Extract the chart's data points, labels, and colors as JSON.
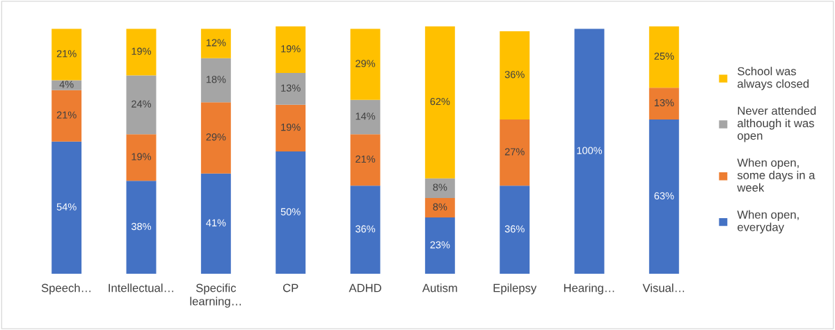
{
  "chart_data": {
    "type": "bar",
    "stacked": true,
    "legend": "right",
    "categories": [
      "Speech…",
      "Intellectual…",
      "Specific\nlearning…",
      "CP",
      "ADHD",
      "Autism",
      "Epilepsy",
      "Hearing…",
      "Visual…"
    ],
    "series": [
      {
        "name": "When open,\neveryday",
        "color": "#4472c4",
        "values": [
          54,
          38,
          41,
          50,
          36,
          23,
          36,
          100,
          63
        ],
        "value_labels": [
          "54%",
          "38%",
          "41%",
          "50%",
          "36%",
          "23%",
          "36%",
          "100%",
          "63%"
        ]
      },
      {
        "name": "When open,\nsome days in a\nweek",
        "color": "#ed7d31",
        "values": [
          21,
          19,
          29,
          19,
          21,
          8,
          27,
          0,
          13
        ],
        "value_labels": [
          "21%",
          "19%",
          "29%",
          "19%",
          "21%",
          "8%",
          "27%",
          null,
          "13%"
        ]
      },
      {
        "name": "Never attended\nalthough it was\nopen",
        "color": "#a5a5a5",
        "values": [
          4,
          24,
          18,
          13,
          14,
          8,
          0,
          0,
          0
        ],
        "value_labels": [
          "4%",
          "24%",
          "18%",
          "13%",
          "14%",
          "8%",
          null,
          null,
          null
        ]
      },
      {
        "name": "School was\nalways closed",
        "color": "#ffc000",
        "values": [
          21,
          19,
          12,
          19,
          29,
          62,
          36,
          0,
          25
        ],
        "value_labels": [
          "21%",
          "19%",
          "12%",
          "19%",
          "29%",
          "62%",
          "36%",
          null,
          "25%"
        ]
      }
    ]
  }
}
